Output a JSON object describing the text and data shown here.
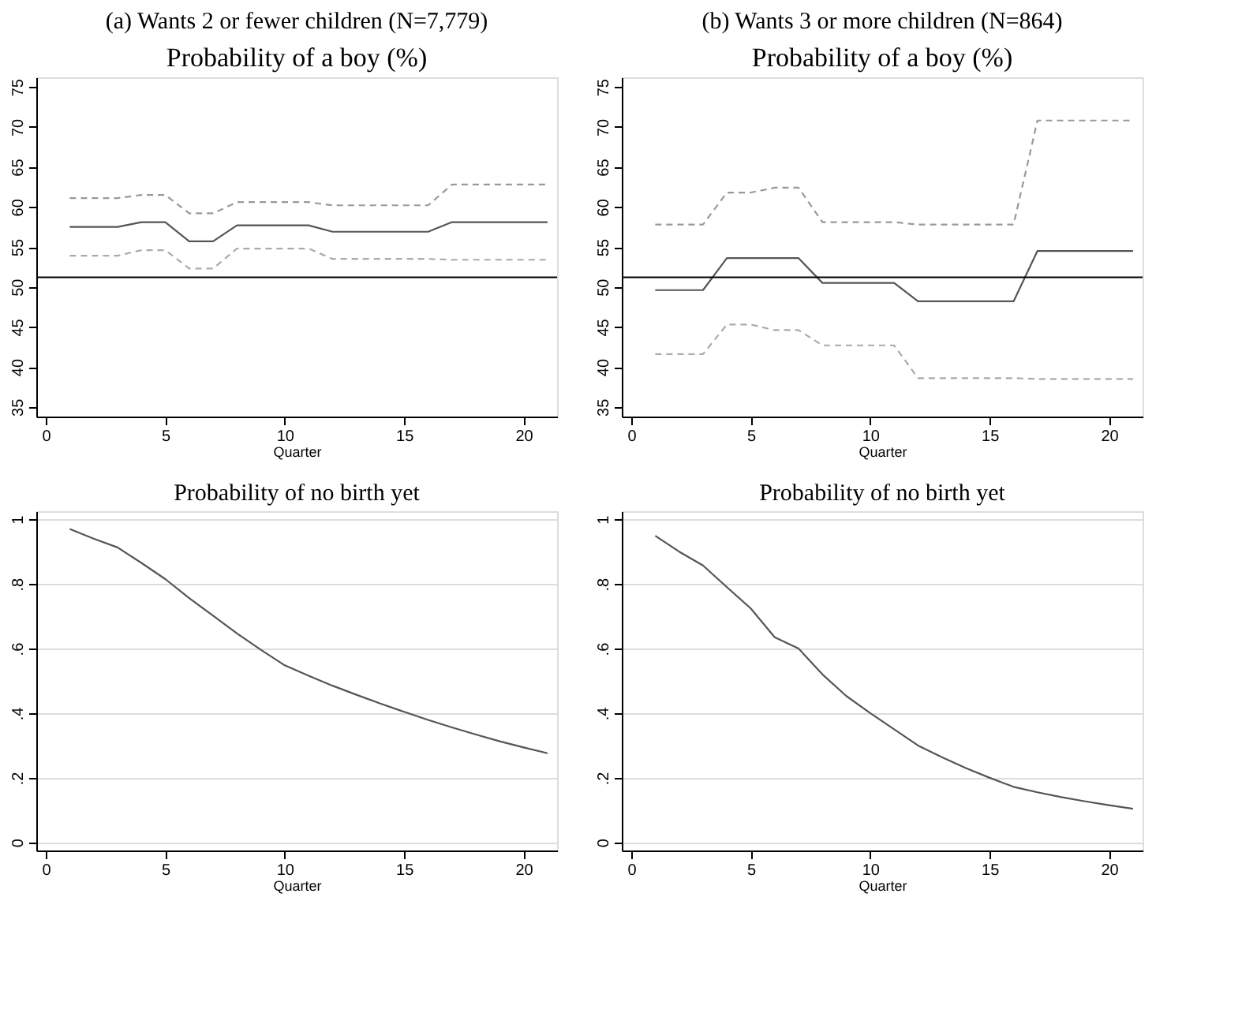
{
  "chart_data": [
    {
      "type": "line",
      "title": "(a) Wants 2 or fewer children (N=7,779)",
      "subtitle": "Probability of a boy (%)",
      "xlabel": "Quarter",
      "x": [
        1,
        2,
        3,
        4,
        5,
        6,
        7,
        8,
        9,
        10,
        11,
        12,
        13,
        14,
        15,
        16,
        17,
        18,
        19,
        20,
        21
      ],
      "xlim": [
        -0.4,
        21.4
      ],
      "xticks": [
        0,
        5,
        10,
        15,
        20
      ],
      "ylim": [
        33.8,
        76.2
      ],
      "yticks": [
        35,
        40,
        45,
        50,
        55,
        60,
        65,
        70,
        75
      ],
      "grid": false,
      "series": [
        {
          "color": "#999999",
          "line_style": "dashed",
          "values": [
            61.1,
            61.1,
            61.1,
            61.5,
            61.5,
            59.2,
            59.2,
            60.6,
            60.6,
            60.6,
            60.6,
            60.2,
            60.2,
            60.2,
            60.2,
            60.2,
            62.8,
            62.8,
            62.8,
            62.8,
            62.8
          ]
        },
        {
          "color": "#555555",
          "line_style": "solid",
          "values": [
            57.5,
            57.5,
            57.5,
            58.1,
            58.1,
            55.7,
            55.7,
            57.7,
            57.7,
            57.7,
            57.7,
            56.9,
            56.9,
            56.9,
            56.9,
            56.9,
            58.1,
            58.1,
            58.1,
            58.1,
            58.1
          ]
        },
        {
          "color": "#aaaaaa",
          "line_style": "dashed",
          "values": [
            53.9,
            53.9,
            53.9,
            54.6,
            54.6,
            52.3,
            52.3,
            54.8,
            54.8,
            54.8,
            54.8,
            53.5,
            53.5,
            53.5,
            53.5,
            53.5,
            53.4,
            53.4,
            53.4,
            53.4,
            53.4
          ]
        }
      ],
      "ref_lines": [
        {
          "axis": "y",
          "value": 51.2,
          "color": "#000000"
        }
      ]
    },
    {
      "type": "line",
      "title": "(b) Wants 3 or more children (N=864)",
      "subtitle": "Probability of a boy (%)",
      "xlabel": "Quarter",
      "x": [
        1,
        2,
        3,
        4,
        5,
        6,
        7,
        8,
        9,
        10,
        11,
        12,
        13,
        14,
        15,
        16,
        17,
        18,
        19,
        20,
        21
      ],
      "xlim": [
        -0.4,
        21.4
      ],
      "xticks": [
        0,
        5,
        10,
        15,
        20
      ],
      "ylim": [
        33.8,
        76.2
      ],
      "yticks": [
        35,
        40,
        45,
        50,
        55,
        60,
        65,
        70,
        75
      ],
      "grid": false,
      "series": [
        {
          "color": "#999999",
          "line_style": "dashed",
          "values": [
            57.8,
            57.8,
            57.8,
            61.8,
            61.8,
            62.4,
            62.4,
            58.1,
            58.1,
            58.1,
            58.1,
            57.8,
            57.8,
            57.8,
            57.8,
            57.8,
            70.8,
            70.8,
            70.8,
            70.8,
            70.8
          ]
        },
        {
          "color": "#555555",
          "line_style": "solid",
          "values": [
            49.6,
            49.6,
            49.6,
            53.6,
            53.6,
            53.6,
            53.6,
            50.5,
            50.5,
            50.5,
            50.5,
            48.2,
            48.2,
            48.2,
            48.2,
            48.2,
            54.5,
            54.5,
            54.5,
            54.5,
            54.5
          ]
        },
        {
          "color": "#aaaaaa",
          "line_style": "dashed",
          "values": [
            41.6,
            41.6,
            41.6,
            45.3,
            45.3,
            44.6,
            44.6,
            42.7,
            42.7,
            42.7,
            42.7,
            38.6,
            38.6,
            38.6,
            38.6,
            38.6,
            38.5,
            38.5,
            38.5,
            38.5,
            38.5
          ]
        }
      ],
      "ref_lines": [
        {
          "axis": "y",
          "value": 51.2,
          "color": "#000000"
        }
      ]
    },
    {
      "type": "line",
      "title": "Probability of no birth yet",
      "xlabel": "Quarter",
      "x": [
        1,
        2,
        3,
        4,
        5,
        6,
        7,
        8,
        9,
        10,
        11,
        12,
        13,
        14,
        15,
        16,
        17,
        18,
        19,
        20,
        21
      ],
      "xlim": [
        -0.4,
        21.4
      ],
      "xticks": [
        0,
        5,
        10,
        15,
        20
      ],
      "ylim": [
        -0.025,
        1.025
      ],
      "yticks": [
        0,
        {
          "value": 0.2,
          "label": ".2"
        },
        {
          "value": 0.4,
          "label": ".4"
        },
        {
          "value": 0.6,
          "label": ".6"
        },
        {
          "value": 0.8,
          "label": ".8"
        },
        1
      ],
      "grid": "y",
      "series": [
        {
          "color": "#555555",
          "line_style": "solid",
          "values": [
            0.97,
            0.94,
            0.913,
            0.865,
            0.815,
            0.756,
            0.702,
            0.647,
            0.596,
            0.548,
            0.516,
            0.485,
            0.457,
            0.43,
            0.404,
            0.379,
            0.356,
            0.334,
            0.313,
            0.294,
            0.276
          ]
        }
      ]
    },
    {
      "type": "line",
      "title": "Probability of no birth yet",
      "xlabel": "Quarter",
      "x": [
        1,
        2,
        3,
        4,
        5,
        6,
        7,
        8,
        9,
        10,
        11,
        12,
        13,
        14,
        15,
        16,
        17,
        18,
        19,
        20,
        21
      ],
      "xlim": [
        -0.4,
        21.4
      ],
      "xticks": [
        0,
        5,
        10,
        15,
        20
      ],
      "ylim": [
        -0.025,
        1.025
      ],
      "yticks": [
        0,
        {
          "value": 0.2,
          "label": ".2"
        },
        {
          "value": 0.4,
          "label": ".4"
        },
        {
          "value": 0.6,
          "label": ".6"
        },
        {
          "value": 0.8,
          "label": ".8"
        },
        1
      ],
      "grid": "y",
      "series": [
        {
          "color": "#555555",
          "line_style": "solid",
          "values": [
            0.949,
            0.9,
            0.857,
            0.79,
            0.724,
            0.635,
            0.6,
            0.52,
            0.453,
            0.4,
            0.35,
            0.3,
            0.264,
            0.23,
            0.2,
            0.172,
            0.155,
            0.14,
            0.127,
            0.115,
            0.104
          ]
        }
      ]
    }
  ]
}
